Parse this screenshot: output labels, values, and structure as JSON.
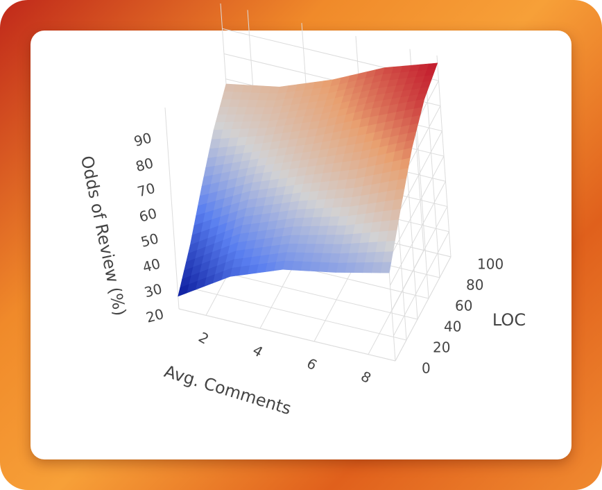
{
  "chart_data": {
    "type": "surface",
    "x_label": "Avg. Comments",
    "y_label": "LOC",
    "z_label": "Odds of Review (%)",
    "x": [
      1,
      3,
      5,
      7,
      9
    ],
    "y": [
      0,
      25,
      50,
      75,
      100
    ],
    "z": [
      [
        25,
        38,
        46,
        50,
        55
      ],
      [
        35,
        48,
        56,
        62,
        70
      ],
      [
        48,
        58,
        66,
        74,
        84
      ],
      [
        60,
        66,
        74,
        84,
        93
      ],
      [
        68,
        72,
        80,
        90,
        97
      ]
    ],
    "xlim": [
      1,
      9
    ],
    "ylim": [
      0,
      100
    ],
    "zlim": [
      20,
      100
    ],
    "xticks": [
      2,
      4,
      6,
      8
    ],
    "yticks": [
      0,
      20,
      40,
      60,
      80,
      100
    ],
    "zticks": [
      20,
      30,
      40,
      50,
      60,
      70,
      80,
      90
    ],
    "colorscale": [
      "#0a1a9c",
      "#5a7ff0",
      "#d2d2d4",
      "#e8a070",
      "#c2182b"
    ],
    "grid": true
  }
}
